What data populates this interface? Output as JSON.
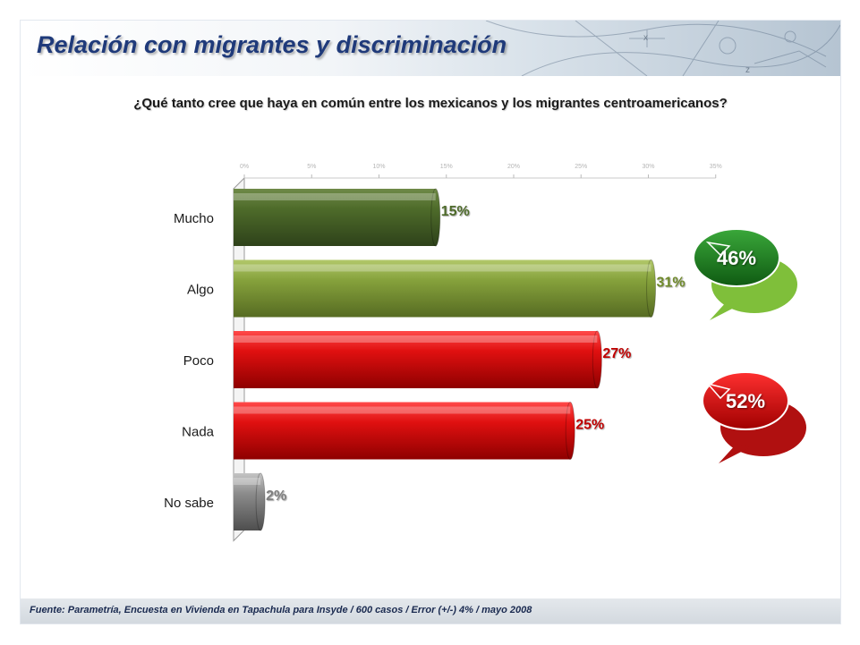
{
  "title": "Relación con migrantes y discriminación",
  "chart_data": {
    "type": "bar",
    "orientation": "horizontal",
    "title": "¿Qué tanto cree que haya en común entre los mexicanos y los migrantes centroamericanos?",
    "categories": [
      "Mucho",
      "Algo",
      "Poco",
      "Nada",
      "No sabe"
    ],
    "values": [
      15,
      31,
      27,
      25,
      2
    ],
    "value_labels": [
      "15%",
      "31%",
      "27%",
      "25%",
      "2%"
    ],
    "bar_colors": [
      "#4e6b2a",
      "#7f9a38",
      "#d40f0f",
      "#d40f0f",
      "#8c8c8c"
    ],
    "label_colors": [
      "#4e6b2a",
      "#6f8a2a",
      "#c00000",
      "#c00000",
      "#7f7f7f"
    ],
    "xlim": [
      0,
      35
    ],
    "xticks": [
      "0%",
      "5%",
      "10%",
      "15%",
      "20%",
      "25%",
      "30%",
      "35%"
    ],
    "xlabel": "",
    "ylabel": "",
    "annotations": [
      {
        "label": "46%",
        "group": [
          "Mucho",
          "Algo"
        ],
        "color": "#2a8a2a"
      },
      {
        "label": "52%",
        "group": [
          "Poco",
          "Nada"
        ],
        "color": "#d01010"
      }
    ]
  },
  "footer": "Fuente: Parametría, Encuesta en Vivienda en Tapachula para Insyde / 600 casos / Error (+/-) 4% / mayo 2008"
}
